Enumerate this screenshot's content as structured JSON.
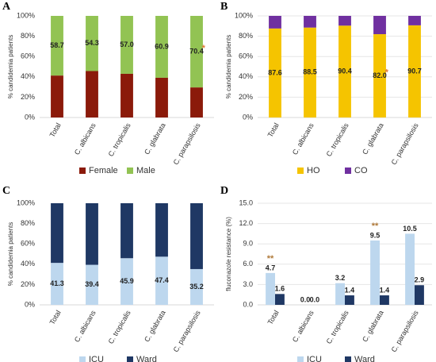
{
  "chart_data": [
    {
      "type": "stacked_bar",
      "panel": "A",
      "ylabel": "% candidemia patients",
      "categories": [
        "Total",
        "C. albicans",
        "C. tropicalis",
        "C. glabrata",
        "C. parapsilosis"
      ],
      "series": [
        {
          "name": "Female",
          "color": "#8b1a0a",
          "values": [
            41.3,
            45.7,
            43.0,
            39.1,
            29.6
          ]
        },
        {
          "name": "Male",
          "color": "#92c353",
          "values": [
            58.7,
            54.3,
            57.0,
            60.9,
            70.4
          ],
          "value_labels": [
            "58.7",
            "54.3",
            "57.0",
            "60.9",
            "70.4"
          ]
        }
      ],
      "ylim": [
        0,
        100
      ],
      "yticks": [
        {
          "value": 0,
          "label": "0%"
        },
        {
          "value": 20,
          "label": "20%"
        },
        {
          "value": 40,
          "label": "40%"
        },
        {
          "value": 60,
          "label": "60%"
        },
        {
          "value": 80,
          "label": "80%"
        },
        {
          "value": 100,
          "label": "100%"
        }
      ],
      "grid": false,
      "annotations": [
        {
          "text": "*",
          "category": "C. parapsilosis",
          "color": "#e07b39"
        }
      ]
    },
    {
      "type": "stacked_bar",
      "panel": "B",
      "ylabel": "% candidemia patients",
      "categories": [
        "Total",
        "C. albicans",
        "C. tropicalis",
        "C. glabrata",
        "C. parapsilosis"
      ],
      "series": [
        {
          "name": "HO",
          "color": "#f5c400",
          "values": [
            87.6,
            88.5,
            90.4,
            82.0,
            90.7
          ],
          "value_labels": [
            "87.6",
            "88.5",
            "90.4",
            "82.0",
            "90.7"
          ]
        },
        {
          "name": "CO",
          "color": "#7030a0",
          "values": [
            12.4,
            11.5,
            9.6,
            18.0,
            9.3
          ]
        }
      ],
      "ylim": [
        0,
        100
      ],
      "yticks": [
        {
          "value": 0,
          "label": "0%"
        },
        {
          "value": 20,
          "label": "20%"
        },
        {
          "value": 40,
          "label": "40%"
        },
        {
          "value": 60,
          "label": "60%"
        },
        {
          "value": 80,
          "label": "80%"
        },
        {
          "value": 100,
          "label": "100%"
        }
      ],
      "grid": true,
      "annotations": [
        {
          "text": "*",
          "category": "C. glabrata",
          "color": "#e07b39"
        }
      ]
    },
    {
      "type": "stacked_bar",
      "panel": "C",
      "ylabel": "% candidemia patients",
      "categories": [
        "Total",
        "C. albicans",
        "C. tropicalis",
        "C. glabrata",
        "C. parapsilosis"
      ],
      "series": [
        {
          "name": "ICU",
          "color": "#bdd7ee",
          "values": [
            41.3,
            39.4,
            45.9,
            47.4,
            35.2
          ],
          "value_labels": [
            "41.3",
            "39.4",
            "45.9",
            "47.4",
            "35.2"
          ]
        },
        {
          "name": "Ward",
          "color": "#1f3864",
          "values": [
            58.7,
            60.6,
            54.1,
            52.6,
            64.8
          ]
        }
      ],
      "ylim": [
        0,
        100
      ],
      "yticks": [
        {
          "value": 0,
          "label": "0%"
        },
        {
          "value": 20,
          "label": "20%"
        },
        {
          "value": 40,
          "label": "40%"
        },
        {
          "value": 60,
          "label": "60%"
        },
        {
          "value": 80,
          "label": "80%"
        },
        {
          "value": 100,
          "label": "100%"
        }
      ],
      "grid": false,
      "annotations": []
    },
    {
      "type": "bar",
      "panel": "D",
      "ylabel": "fluconazole resistance (%)",
      "categories": [
        "Total",
        "C. albicans",
        "C. tropicalis",
        "C. glabrata",
        "C. parapsilosis"
      ],
      "series": [
        {
          "name": "ICU",
          "color": "#bdd7ee",
          "values": [
            4.7,
            0.0,
            3.2,
            9.5,
            10.5
          ],
          "value_labels": [
            "4.7",
            "0.0",
            "3.2",
            "9.5",
            "10.5"
          ]
        },
        {
          "name": "Ward",
          "color": "#1f3864",
          "values": [
            1.6,
            0.0,
            1.4,
            1.4,
            2.9
          ],
          "value_labels": [
            "1.6",
            "0.0",
            "1.4",
            "1.4",
            "2.9"
          ]
        }
      ],
      "ylim": [
        0,
        15
      ],
      "yticks": [
        {
          "value": 0,
          "label": "0.0"
        },
        {
          "value": 3,
          "label": "3.0"
        },
        {
          "value": 6,
          "label": "6.0"
        },
        {
          "value": 9,
          "label": "9.0"
        },
        {
          "value": 12,
          "label": "12.0"
        },
        {
          "value": 15,
          "label": "15.0"
        }
      ],
      "grid": true,
      "annotations": [
        {
          "text": "**",
          "category": "Total",
          "color": "#b07a3a"
        },
        {
          "text": "**",
          "category": "C. glabrata",
          "color": "#b07a3a"
        }
      ]
    }
  ]
}
